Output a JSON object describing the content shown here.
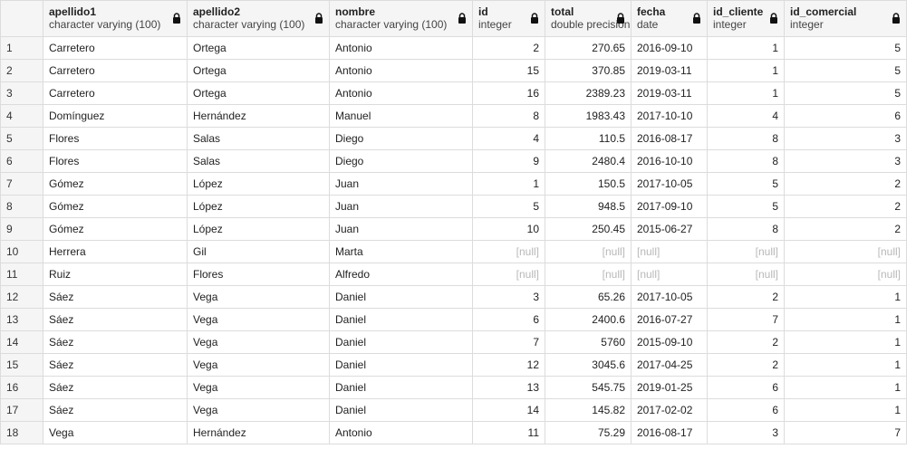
{
  "columns": [
    {
      "key": "apellido1",
      "name": "apellido1",
      "type": "character varying (100)",
      "align": "left"
    },
    {
      "key": "apellido2",
      "name": "apellido2",
      "type": "character varying (100)",
      "align": "left"
    },
    {
      "key": "nombre",
      "name": "nombre",
      "type": "character varying (100)",
      "align": "left"
    },
    {
      "key": "id",
      "name": "id",
      "type": "integer",
      "align": "right"
    },
    {
      "key": "total",
      "name": "total",
      "type": "double precision",
      "align": "right"
    },
    {
      "key": "fecha",
      "name": "fecha",
      "type": "date",
      "align": "left"
    },
    {
      "key": "id_cliente",
      "name": "id_cliente",
      "type": "integer",
      "align": "right"
    },
    {
      "key": "id_comercial",
      "name": "id_comercial",
      "type": "integer",
      "align": "right"
    }
  ],
  "null_label": "[null]",
  "lock_icon": "lock-icon",
  "rows": [
    {
      "n": "1",
      "apellido1": "Carretero",
      "apellido2": "Ortega",
      "nombre": "Antonio",
      "id": "2",
      "total": "270.65",
      "fecha": "2016-09-10",
      "id_cliente": "1",
      "id_comercial": "5"
    },
    {
      "n": "2",
      "apellido1": "Carretero",
      "apellido2": "Ortega",
      "nombre": "Antonio",
      "id": "15",
      "total": "370.85",
      "fecha": "2019-03-11",
      "id_cliente": "1",
      "id_comercial": "5"
    },
    {
      "n": "3",
      "apellido1": "Carretero",
      "apellido2": "Ortega",
      "nombre": "Antonio",
      "id": "16",
      "total": "2389.23",
      "fecha": "2019-03-11",
      "id_cliente": "1",
      "id_comercial": "5"
    },
    {
      "n": "4",
      "apellido1": "Domínguez",
      "apellido2": "Hernández",
      "nombre": "Manuel",
      "id": "8",
      "total": "1983.43",
      "fecha": "2017-10-10",
      "id_cliente": "4",
      "id_comercial": "6"
    },
    {
      "n": "5",
      "apellido1": "Flores",
      "apellido2": "Salas",
      "nombre": "Diego",
      "id": "4",
      "total": "110.5",
      "fecha": "2016-08-17",
      "id_cliente": "8",
      "id_comercial": "3"
    },
    {
      "n": "6",
      "apellido1": "Flores",
      "apellido2": "Salas",
      "nombre": "Diego",
      "id": "9",
      "total": "2480.4",
      "fecha": "2016-10-10",
      "id_cliente": "8",
      "id_comercial": "3"
    },
    {
      "n": "7",
      "apellido1": "Gómez",
      "apellido2": "López",
      "nombre": "Juan",
      "id": "1",
      "total": "150.5",
      "fecha": "2017-10-05",
      "id_cliente": "5",
      "id_comercial": "2"
    },
    {
      "n": "8",
      "apellido1": "Gómez",
      "apellido2": "López",
      "nombre": "Juan",
      "id": "5",
      "total": "948.5",
      "fecha": "2017-09-10",
      "id_cliente": "5",
      "id_comercial": "2"
    },
    {
      "n": "9",
      "apellido1": "Gómez",
      "apellido2": "López",
      "nombre": "Juan",
      "id": "10",
      "total": "250.45",
      "fecha": "2015-06-27",
      "id_cliente": "8",
      "id_comercial": "2"
    },
    {
      "n": "10",
      "apellido1": "Herrera",
      "apellido2": "Gil",
      "nombre": "Marta",
      "id": null,
      "total": null,
      "fecha": null,
      "id_cliente": null,
      "id_comercial": null
    },
    {
      "n": "11",
      "apellido1": "Ruiz",
      "apellido2": "Flores",
      "nombre": "Alfredo",
      "id": null,
      "total": null,
      "fecha": null,
      "id_cliente": null,
      "id_comercial": null
    },
    {
      "n": "12",
      "apellido1": "Sáez",
      "apellido2": "Vega",
      "nombre": "Daniel",
      "id": "3",
      "total": "65.26",
      "fecha": "2017-10-05",
      "id_cliente": "2",
      "id_comercial": "1"
    },
    {
      "n": "13",
      "apellido1": "Sáez",
      "apellido2": "Vega",
      "nombre": "Daniel",
      "id": "6",
      "total": "2400.6",
      "fecha": "2016-07-27",
      "id_cliente": "7",
      "id_comercial": "1"
    },
    {
      "n": "14",
      "apellido1": "Sáez",
      "apellido2": "Vega",
      "nombre": "Daniel",
      "id": "7",
      "total": "5760",
      "fecha": "2015-09-10",
      "id_cliente": "2",
      "id_comercial": "1"
    },
    {
      "n": "15",
      "apellido1": "Sáez",
      "apellido2": "Vega",
      "nombre": "Daniel",
      "id": "12",
      "total": "3045.6",
      "fecha": "2017-04-25",
      "id_cliente": "2",
      "id_comercial": "1"
    },
    {
      "n": "16",
      "apellido1": "Sáez",
      "apellido2": "Vega",
      "nombre": "Daniel",
      "id": "13",
      "total": "545.75",
      "fecha": "2019-01-25",
      "id_cliente": "6",
      "id_comercial": "1"
    },
    {
      "n": "17",
      "apellido1": "Sáez",
      "apellido2": "Vega",
      "nombre": "Daniel",
      "id": "14",
      "total": "145.82",
      "fecha": "2017-02-02",
      "id_cliente": "6",
      "id_comercial": "1"
    },
    {
      "n": "18",
      "apellido1": "Vega",
      "apellido2": "Hernández",
      "nombre": "Antonio",
      "id": "11",
      "total": "75.29",
      "fecha": "2016-08-17",
      "id_cliente": "3",
      "id_comercial": "7"
    }
  ]
}
